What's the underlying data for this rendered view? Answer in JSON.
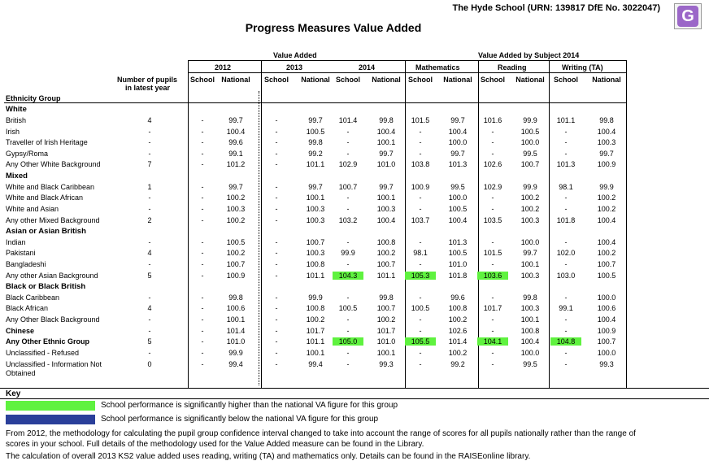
{
  "header": {
    "school_id": "The Hyde School (URN: 139817 DfE No. 3022047)",
    "badge": "G",
    "title": "Progress Measures Value Added"
  },
  "column_headers": {
    "value_added": "Value Added",
    "by_subject": "Value Added by Subject 2014",
    "y2012": "2012",
    "y2013": "2013",
    "y2014": "2014",
    "mathematics": "Mathematics",
    "reading": "Reading",
    "writing": "Writing (TA)",
    "pupils": "Number of pupils",
    "pupils2": "in latest year",
    "school": "School",
    "national": "National",
    "ethnicity": "Ethnicity Group"
  },
  "rows": [
    {
      "label": "White",
      "type": "section"
    },
    {
      "label": "British",
      "pupils": "4",
      "cells": [
        "-",
        "99.7",
        "-",
        "99.7",
        "101.4",
        "99.8",
        "101.5",
        "99.7",
        "101.6",
        "99.9",
        "101.1",
        "99.8"
      ]
    },
    {
      "label": "Irish",
      "pupils": "-",
      "cells": [
        "-",
        "100.4",
        "-",
        "100.5",
        "-",
        "100.4",
        "-",
        "100.4",
        "-",
        "100.5",
        "-",
        "100.4"
      ]
    },
    {
      "label": "Traveller of Irish Heritage",
      "pupils": "-",
      "cells": [
        "-",
        "99.6",
        "-",
        "99.8",
        "-",
        "100.1",
        "-",
        "100.0",
        "-",
        "100.0",
        "-",
        "100.3"
      ]
    },
    {
      "label": "Gypsy/Roma",
      "pupils": "-",
      "cells": [
        "-",
        "99.1",
        "-",
        "99.2",
        "-",
        "99.7",
        "-",
        "99.7",
        "-",
        "99.5",
        "-",
        "99.7"
      ]
    },
    {
      "label": "Any Other White Background",
      "pupils": "7",
      "cells": [
        "-",
        "101.2",
        "-",
        "101.1",
        "102.9",
        "101.0",
        "103.8",
        "101.3",
        "102.6",
        "100.7",
        "101.3",
        "100.9"
      ]
    },
    {
      "label": "Mixed",
      "type": "section"
    },
    {
      "label": "White and Black Caribbean",
      "pupils": "1",
      "cells": [
        "-",
        "99.7",
        "-",
        "99.7",
        "100.7",
        "99.7",
        "100.9",
        "99.5",
        "102.9",
        "99.9",
        "98.1",
        "99.9"
      ]
    },
    {
      "label": "White and Black African",
      "pupils": "-",
      "cells": [
        "-",
        "100.2",
        "-",
        "100.1",
        "-",
        "100.1",
        "-",
        "100.0",
        "-",
        "100.2",
        "-",
        "100.2"
      ]
    },
    {
      "label": "White and Asian",
      "pupils": "-",
      "cells": [
        "-",
        "100.3",
        "-",
        "100.3",
        "-",
        "100.3",
        "-",
        "100.5",
        "-",
        "100.2",
        "-",
        "100.2"
      ]
    },
    {
      "label": "Any other Mixed Background",
      "pupils": "2",
      "cells": [
        "-",
        "100.2",
        "-",
        "100.3",
        "103.2",
        "100.4",
        "103.7",
        "100.4",
        "103.5",
        "100.3",
        "101.8",
        "100.4"
      ]
    },
    {
      "label": "Asian or Asian British",
      "type": "section"
    },
    {
      "label": "Indian",
      "pupils": "-",
      "cells": [
        "-",
        "100.5",
        "-",
        "100.7",
        "-",
        "100.8",
        "-",
        "101.3",
        "-",
        "100.0",
        "-",
        "100.4"
      ]
    },
    {
      "label": "Pakistani",
      "pupils": "4",
      "cells": [
        "-",
        "100.2",
        "-",
        "100.3",
        "99.9",
        "100.2",
        "98.1",
        "100.5",
        "101.5",
        "99.7",
        "102.0",
        "100.2"
      ]
    },
    {
      "label": "Bangladeshi",
      "pupils": "-",
      "cells": [
        "-",
        "100.7",
        "-",
        "100.8",
        "-",
        "100.7",
        "-",
        "101.0",
        "-",
        "100.1",
        "-",
        "100.7"
      ]
    },
    {
      "label": "Any other Asian Background",
      "pupils": "5",
      "cells": [
        "-",
        "100.9",
        "-",
        "101.1",
        "104.3",
        "101.1",
        "105.3",
        "101.8",
        "103.6",
        "100.3",
        "103.0",
        "100.5"
      ],
      "green": [
        4,
        6,
        8
      ]
    },
    {
      "label": "Black or Black British",
      "type": "section"
    },
    {
      "label": "Black Caribbean",
      "pupils": "-",
      "cells": [
        "-",
        "99.8",
        "-",
        "99.9",
        "-",
        "99.8",
        "-",
        "99.6",
        "-",
        "99.8",
        "-",
        "100.0"
      ]
    },
    {
      "label": "Black African",
      "pupils": "4",
      "cells": [
        "-",
        "100.6",
        "-",
        "100.8",
        "100.5",
        "100.7",
        "100.5",
        "100.8",
        "101.7",
        "100.3",
        "99.1",
        "100.6"
      ]
    },
    {
      "label": "Any Other Black Background",
      "pupils": "-",
      "cells": [
        "-",
        "100.1",
        "-",
        "100.2",
        "-",
        "100.2",
        "-",
        "100.2",
        "-",
        "100.1",
        "-",
        "100.4"
      ]
    },
    {
      "label": "Chinese",
      "pupils": "-",
      "type": "bold",
      "cells": [
        "-",
        "101.4",
        "-",
        "101.7",
        "-",
        "101.7",
        "-",
        "102.6",
        "-",
        "100.8",
        "-",
        "100.9"
      ]
    },
    {
      "label": "Any Other Ethnic Group",
      "pupils": "5",
      "type": "bold",
      "cells": [
        "-",
        "101.0",
        "-",
        "101.1",
        "105.0",
        "101.0",
        "105.5",
        "101.4",
        "104.1",
        "100.4",
        "104.8",
        "100.7"
      ],
      "green": [
        4,
        6,
        8,
        10
      ]
    },
    {
      "label": "Unclassified - Refused",
      "pupils": "-",
      "cells": [
        "-",
        "99.9",
        "-",
        "100.1",
        "-",
        "100.1",
        "-",
        "100.2",
        "-",
        "100.0",
        "-",
        "100.0"
      ]
    },
    {
      "label": "Unclassified - Information Not",
      "label2": "Obtained",
      "pupils": "0",
      "cells": [
        "-",
        "99.4",
        "-",
        "99.4",
        "-",
        "99.3",
        "-",
        "99.2",
        "-",
        "99.5",
        "-",
        "99.3"
      ]
    }
  ],
  "key": {
    "title": "Key",
    "higher_color": "#5ff23f",
    "lower_color": "#2a3f9a",
    "higher_text": "School performance is significantly higher than the national VA figure for this group",
    "lower_text": "School performance is significantly below the national VA figure for this group"
  },
  "notes": {
    "methodology": "From 2012, the methodology for calculating the pupil group confidence interval changed to take into account the range of scores for all pupils nationally rather than the range of scores in your school. Full details of the methodology used for the Value Added measure can be found in the Library.",
    "calculation": "The calculation of overall 2013 KS2 value added uses reading, writing (TA) and mathematics only. Details can be found in the RAISEonline library."
  }
}
